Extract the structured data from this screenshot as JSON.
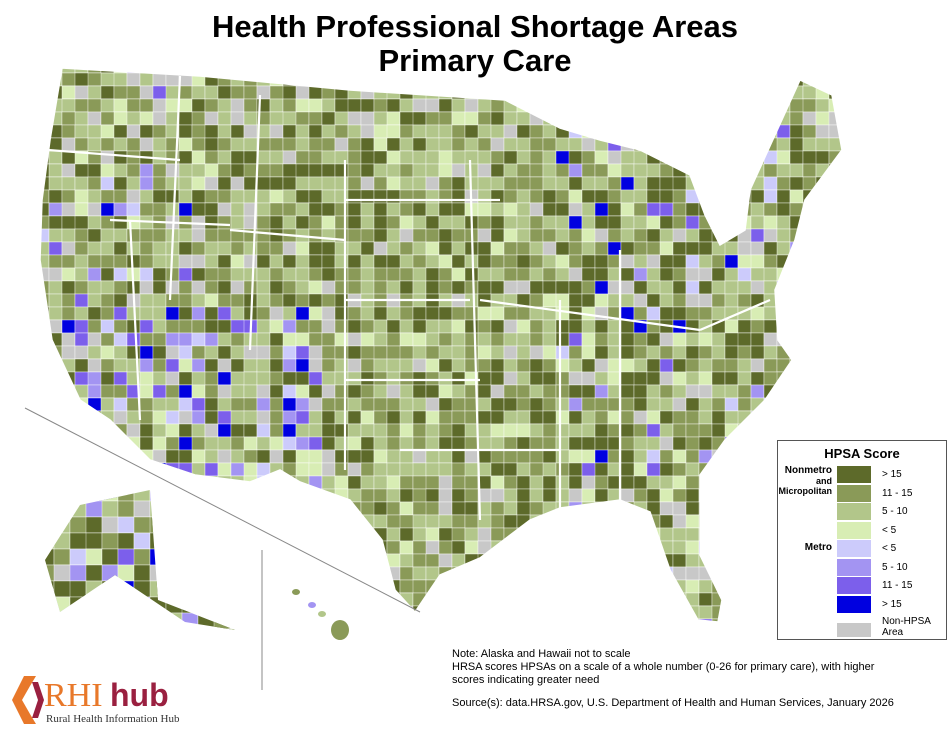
{
  "title": {
    "line1": "Health Professional Shortage Areas",
    "line2": "Primary Care"
  },
  "legend": {
    "title": "HPSA Score",
    "groups": {
      "nonmetro": "Nonmetro",
      "and": "and",
      "micropolitan": "Micropolitan",
      "metro": "Metro"
    },
    "items": [
      {
        "label": "> 15",
        "color": "#5d6a2a"
      },
      {
        "label": "11 - 15",
        "color": "#8a9a58"
      },
      {
        "label": "5 - 10",
        "color": "#b2c68a"
      },
      {
        "label": "< 5",
        "color": "#d8edb4"
      },
      {
        "label": "< 5",
        "color": "#cccbfb"
      },
      {
        "label": "5 - 10",
        "color": "#a394f2"
      },
      {
        "label": "11 - 15",
        "color": "#7c5feb"
      },
      {
        "label": "> 15",
        "color": "#0000e0"
      }
    ],
    "non_hpsa": {
      "label1": "Non-HPSA",
      "label2": "Area",
      "color": "#c8c8c8"
    }
  },
  "notes": {
    "line1": "Note: Alaska and Hawaii not to scale",
    "line2": "HRSA scores HPSAs on a scale of a whole number (0-26 for primary care), with higher",
    "line3": "scores indicating greater need",
    "source": "Source(s): data.HRSA.gov, U.S. Department of Health and Human Services, January 2026"
  },
  "logo": {
    "rhi": "RHI",
    "hub": "hub",
    "tagline": "Rural Health Information Hub",
    "orange": "#e8782a",
    "maroon": "#9a2040"
  },
  "map_regions": [
    "Contiguous United States",
    "Alaska",
    "Hawaii"
  ]
}
